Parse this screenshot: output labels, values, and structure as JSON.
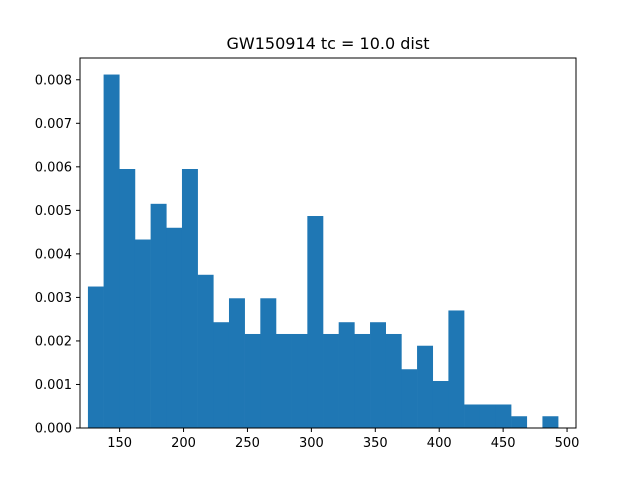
{
  "chart_data": {
    "type": "bar",
    "subtype": "histogram",
    "title": "GW150914 tc = 10.0 dist",
    "xlabel": "",
    "ylabel": "",
    "xlim": [
      119,
      507
    ],
    "ylim": [
      0,
      0.0085
    ],
    "xticks": [
      150,
      200,
      250,
      300,
      350,
      400,
      450,
      500
    ],
    "yticks": [
      0.0,
      0.001,
      0.002,
      0.003,
      0.004,
      0.005,
      0.006,
      0.007,
      0.008
    ],
    "ytick_labels": [
      "0.000",
      "0.001",
      "0.002",
      "0.003",
      "0.004",
      "0.005",
      "0.006",
      "0.007",
      "0.008"
    ],
    "bin_start": 125.2,
    "bin_width": 12.26,
    "values": [
      0.00325,
      0.00812,
      0.00595,
      0.00433,
      0.00515,
      0.0046,
      0.00595,
      0.00352,
      0.00243,
      0.00298,
      0.00216,
      0.00298,
      0.00216,
      0.00216,
      0.00487,
      0.00216,
      0.00243,
      0.00216,
      0.00243,
      0.00216,
      0.00135,
      0.00189,
      0.00108,
      0.0027,
      0.00054,
      0.00054,
      0.00054,
      0.00027,
      0,
      0.00027
    ],
    "bar_color": "#1f77b4",
    "grid": false,
    "legend": "none"
  }
}
